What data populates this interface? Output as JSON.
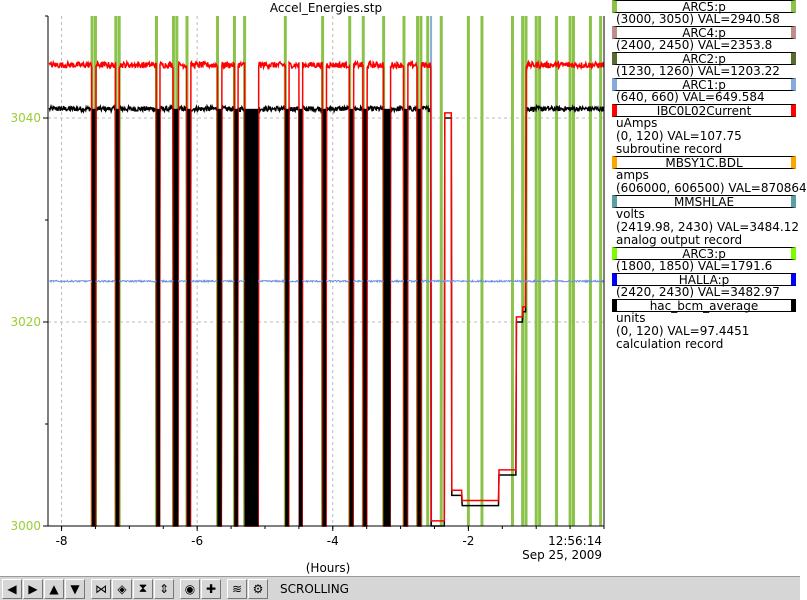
{
  "window": {
    "title": "Accel_Energies.stp"
  },
  "chart_data": {
    "type": "line",
    "title": "Accel_Energies.stp",
    "xlabel": "(Hours)",
    "ylabel": "",
    "xlim": [
      -8.2,
      0
    ],
    "ylim": [
      3000,
      3050
    ],
    "x_ticks": [
      -8,
      -6,
      -4,
      -2
    ],
    "x_tick_labels": [
      "-8",
      "-6",
      "-4",
      "-2"
    ],
    "x_end_label": "12:56:14",
    "date_label": "Sep 25, 2009",
    "y_ticks": [
      3000,
      3020,
      3040
    ],
    "y_tick_labels": [
      "3000",
      "3020",
      "3040"
    ],
    "y_axis_color": "#9acd32",
    "grid": true,
    "legend_position": "right",
    "series": [
      {
        "name": "hac_bcm_average",
        "color": "#000000",
        "base": 3040.9,
        "noise": 0.25
      },
      {
        "name": "IBC0L02Current",
        "color": "#ff0000",
        "base": 3045.2,
        "noise": 0.3
      },
      {
        "name": "HALLA:p",
        "color": "#6f8fdd",
        "base": 3024.0,
        "noise": 0.08
      }
    ],
    "trips": [
      {
        "start": -7.55,
        "end": -7.5
      },
      {
        "start": -7.2,
        "end": -7.15
      },
      {
        "start": -6.6,
        "end": -6.55
      },
      {
        "start": -6.35,
        "end": -6.28
      },
      {
        "start": -6.15,
        "end": -6.1
      },
      {
        "start": -5.7,
        "end": -5.64
      },
      {
        "start": -5.45,
        "end": -5.4
      },
      {
        "start": -5.3,
        "end": -5.1
      },
      {
        "start": -4.7,
        "end": -4.65
      },
      {
        "start": -4.5,
        "end": -4.45
      },
      {
        "start": -4.15,
        "end": -4.1
      },
      {
        "start": -3.75,
        "end": -3.7
      },
      {
        "start": -3.55,
        "end": -3.5
      },
      {
        "start": -3.25,
        "end": -3.15
      },
      {
        "start": -2.95,
        "end": -2.9
      },
      {
        "start": -2.75,
        "end": -2.7
      }
    ],
    "green_markers": [
      -7.55,
      -7.5,
      -7.2,
      -7.15,
      -6.6,
      -6.35,
      -6.3,
      -6.15,
      -5.7,
      -5.45,
      -5.3,
      -4.7,
      -4.15,
      -3.75,
      -3.55,
      -3.25,
      -2.95,
      -2.75,
      -2.7,
      -2.6,
      -2.4,
      -2.0,
      -1.8,
      -1.35,
      -1.2,
      -1.15,
      -1.0,
      -0.95,
      -0.7,
      -0.5,
      -0.45,
      -0.2,
      -0.05
    ],
    "blue_marker": -2.55,
    "recovery": [
      {
        "x": -2.55,
        "y": 3000
      },
      {
        "x": -2.35,
        "y": 3040
      },
      {
        "x": -2.25,
        "y": 3003
      },
      {
        "x": -2.1,
        "y": 3002
      },
      {
        "x": -1.95,
        "y": 3002
      },
      {
        "x": -1.6,
        "y": 3002
      },
      {
        "x": -1.55,
        "y": 3005
      },
      {
        "x": -1.35,
        "y": 3005
      },
      {
        "x": -1.3,
        "y": 3020
      },
      {
        "x": -1.2,
        "y": 3021
      },
      {
        "x": -1.15,
        "y": 3041
      }
    ]
  },
  "legend": [
    {
      "name": "ARC5:p",
      "color": "#8bc34a",
      "lines": [
        "(3000, 3050) VAL=2940.58"
      ]
    },
    {
      "name": "ARC4:p",
      "color": "#bc8f8f",
      "lines": [
        "(2400, 2450) VAL=2353.8"
      ]
    },
    {
      "name": "ARC2:p",
      "color": "#556b2f",
      "lines": [
        "(1230, 1260) VAL=1203.22"
      ]
    },
    {
      "name": "ARC1:p",
      "color": "#87aadd",
      "lines": [
        "(640, 660) VAL=649.584"
      ]
    },
    {
      "name": "IBC0L02Current",
      "color": "#ff0000",
      "lines": [
        "uAmps",
        "(0, 120) VAL=107.75",
        "subroutine record"
      ]
    },
    {
      "name": "MBSY1C.BDL",
      "color": "#ffa500",
      "lines": [
        "amps",
        "(606000, 606500) VAL=870864"
      ]
    },
    {
      "name": "MMSHLAE",
      "color": "#5f9ea0",
      "lines": [
        "volts",
        "(2419.98, 2430) VAL=3484.12",
        "analog output record"
      ]
    },
    {
      "name": "ARC3:p",
      "color": "#7cfc00",
      "lines": [
        "(1800, 1850) VAL=1791.6"
      ]
    },
    {
      "name": "HALLA:p",
      "color": "#0000ff",
      "lines": [
        "(2420, 2430) VAL=3482.97"
      ]
    },
    {
      "name": "hac_bcm_average",
      "color": "#000000",
      "lines": [
        "units",
        "(0, 120) VAL=97.4451",
        "calculation record"
      ]
    }
  ],
  "toolbar": {
    "buttons": [
      {
        "name": "left-icon",
        "glyph": "◀"
      },
      {
        "name": "right-icon",
        "glyph": "▶"
      },
      {
        "name": "up-icon",
        "glyph": "▲"
      },
      {
        "name": "down-icon",
        "glyph": "▼"
      },
      {
        "name": "zoom-in-x-icon",
        "glyph": "⋈"
      },
      {
        "name": "zoom-out-x-icon",
        "glyph": "◈"
      },
      {
        "name": "zoom-in-y-icon",
        "glyph": "⧗"
      },
      {
        "name": "zoom-out-y-icon",
        "glyph": "⇕"
      },
      {
        "name": "record-icon",
        "glyph": "◉"
      },
      {
        "name": "add-icon",
        "glyph": "✚"
      },
      {
        "name": "scroll-icon",
        "glyph": "≋"
      },
      {
        "name": "config-icon",
        "glyph": "⚙"
      }
    ],
    "status": "SCROLLING"
  }
}
